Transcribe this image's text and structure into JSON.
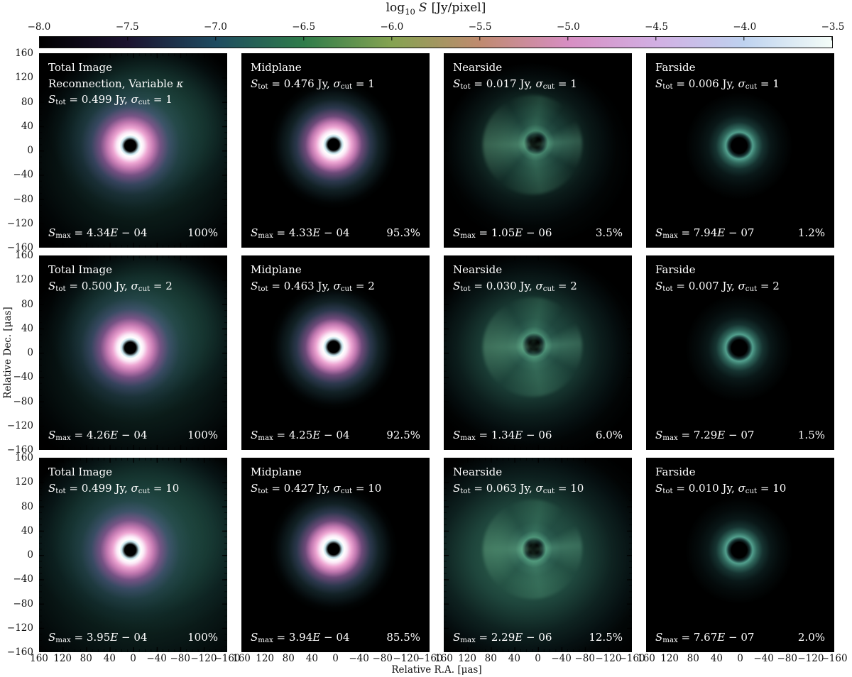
{
  "colorbar": {
    "title_log": "log",
    "title_sub": "10",
    "title_var": "S",
    "title_units": "[Jy/pixel]",
    "ticks": [
      "−8.0",
      "−7.5",
      "−7.0",
      "−6.5",
      "−6.0",
      "−5.5",
      "−5.0",
      "−4.5",
      "−4.0",
      "−3.5"
    ],
    "gradient": [
      "#000000",
      "#1c1330",
      "#1e4b60",
      "#2f7c4a",
      "#85a351",
      "#bf8a6f",
      "#d78ec2",
      "#d2afe3",
      "#bed2ef",
      "#f4fdf8"
    ]
  },
  "axes": {
    "x_label": "Relative R.A. [μas]",
    "y_label": "Relative Dec. [μas]",
    "tick_values": [
      "160",
      "120",
      "80",
      "40",
      "0",
      "−40",
      "−80",
      "−120",
      "−160"
    ]
  },
  "labels": {
    "S": "S",
    "tot": "tot",
    "max": "max",
    "sigma": "σ",
    "cut": "cut",
    "E": "E",
    "eq": " = ",
    "sep": ", "
  },
  "panels": [
    {
      "title": "Total Image",
      "line2": "Reconnection, Variable ",
      "line2_kappa": "κ",
      "stot": "0.499 Jy",
      "sigma_cut": "1",
      "smax_mant": "4.34",
      "smax_exp": " − 04",
      "percent": "100%"
    },
    {
      "title": "Midplane",
      "stot": "0.476 Jy",
      "sigma_cut": "1",
      "smax_mant": "4.33",
      "smax_exp": " − 04",
      "percent": "95.3%"
    },
    {
      "title": "Nearside",
      "stot": "0.017 Jy",
      "sigma_cut": "1",
      "smax_mant": "1.05",
      "smax_exp": " − 06",
      "percent": "3.5%"
    },
    {
      "title": "Farside",
      "stot": "0.006 Jy",
      "sigma_cut": "1",
      "smax_mant": "7.94",
      "smax_exp": " − 07",
      "percent": "1.2%"
    },
    {
      "title": "Total Image",
      "stot": "0.500 Jy",
      "sigma_cut": "2",
      "smax_mant": "4.26",
      "smax_exp": " − 04",
      "percent": "100%"
    },
    {
      "title": "Midplane",
      "stot": "0.463 Jy",
      "sigma_cut": "2",
      "smax_mant": "4.25",
      "smax_exp": " − 04",
      "percent": "92.5%"
    },
    {
      "title": "Nearside",
      "stot": "0.030 Jy",
      "sigma_cut": "2",
      "smax_mant": "1.34",
      "smax_exp": " − 06",
      "percent": "6.0%"
    },
    {
      "title": "Farside",
      "stot": "0.007 Jy",
      "sigma_cut": "2",
      "smax_mant": "7.29",
      "smax_exp": " − 07",
      "percent": "1.5%"
    },
    {
      "title": "Total Image",
      "stot": "0.499 Jy",
      "sigma_cut": "10",
      "smax_mant": "3.95",
      "smax_exp": " − 04",
      "percent": "100%"
    },
    {
      "title": "Midplane",
      "stot": "0.427 Jy",
      "sigma_cut": "10",
      "smax_mant": "3.94",
      "smax_exp": " − 04",
      "percent": "85.5%"
    },
    {
      "title": "Nearside",
      "stot": "0.063 Jy",
      "sigma_cut": "10",
      "smax_mant": "2.29",
      "smax_exp": " − 06",
      "percent": "12.5%"
    },
    {
      "title": "Farside",
      "stot": "0.010 Jy",
      "sigma_cut": "10",
      "smax_mant": "7.67",
      "smax_exp": " − 07",
      "percent": "2.0%"
    }
  ],
  "chart_data": {
    "type": "heatmap",
    "title": "log10 S [Jy/pixel]",
    "colorbar_range": [
      -8.0,
      -3.5
    ],
    "xlabel": "Relative R.A. [μas]",
    "ylabel": "Relative Dec. [μas]",
    "x_range": [
      160,
      -160
    ],
    "y_range": [
      -160,
      160
    ],
    "model": "Reconnection, Variable κ",
    "rows_sigma_cut": [
      1,
      2,
      10
    ],
    "columns": [
      "Total Image",
      "Midplane",
      "Nearside",
      "Farside"
    ],
    "S_tot_Jy": [
      [
        0.499,
        0.476,
        0.017,
        0.006
      ],
      [
        0.5,
        0.463,
        0.03,
        0.007
      ],
      [
        0.499,
        0.427,
        0.063,
        0.01
      ]
    ],
    "S_max": [
      [
        0.000434,
        0.000433,
        1.05e-06,
        7.94e-07
      ],
      [
        0.000426,
        0.000425,
        1.34e-06,
        7.29e-07
      ],
      [
        0.000395,
        0.000394,
        2.29e-06,
        7.67e-07
      ]
    ],
    "flux_percent": [
      [
        100,
        95.3,
        3.5,
        1.2
      ],
      [
        100,
        92.5,
        6.0,
        1.5
      ],
      [
        100,
        85.5,
        12.5,
        2.0
      ]
    ]
  }
}
